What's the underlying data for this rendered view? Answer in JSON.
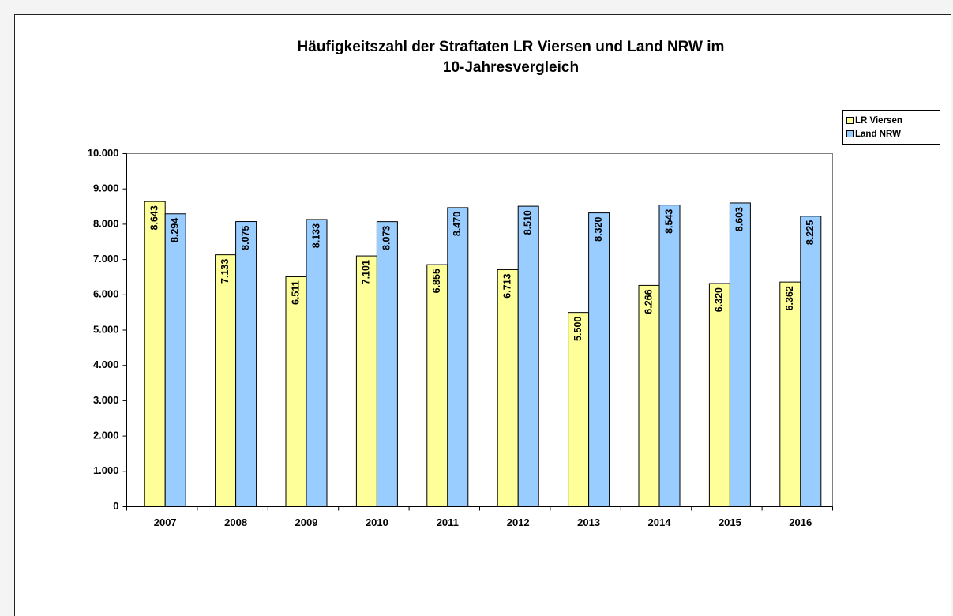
{
  "chart_data": {
    "type": "bar",
    "title": [
      "Häufigkeitszahl der Straftaten LR Viersen und Land NRW im",
      "10-Jahresvergleich"
    ],
    "categories": [
      "2007",
      "2008",
      "2009",
      "2010",
      "2011",
      "2012",
      "2013",
      "2014",
      "2015",
      "2016"
    ],
    "series": [
      {
        "name": "LR Viersen",
        "color": "#ffff99",
        "values": [
          8643,
          7133,
          6511,
          7101,
          6855,
          6713,
          5500,
          6266,
          6320,
          6362
        ],
        "value_labels": [
          "8.643",
          "7.133",
          "6.511",
          "7.101",
          "6.855",
          "6.713",
          "5.500",
          "6.266",
          "6.320",
          "6.362"
        ]
      },
      {
        "name": "Land NRW",
        "color": "#99ccff",
        "values": [
          8294,
          8075,
          8133,
          8073,
          8470,
          8510,
          8320,
          8543,
          8603,
          8225
        ],
        "value_labels": [
          "8.294",
          "8.075",
          "8.133",
          "8.073",
          "8.470",
          "8.510",
          "8.320",
          "8.543",
          "8.603",
          "8.225"
        ]
      }
    ],
    "ylim": [
      0,
      10000
    ],
    "yticks": [
      0,
      {
        "value": 1000,
        "label": "1.000"
      },
      {
        "value": 2000,
        "label": "2.000"
      },
      {
        "value": 3000,
        "label": "3.000"
      },
      {
        "value": 4000,
        "label": "4.000"
      },
      {
        "value": 5000,
        "label": "5.000"
      },
      {
        "value": 6000,
        "label": "6.000"
      },
      {
        "value": 7000,
        "label": "7.000"
      },
      {
        "value": 8000,
        "label": "8.000"
      },
      {
        "value": 9000,
        "label": "9.000"
      },
      {
        "value": 10000,
        "label": "10.000"
      }
    ],
    "grid": false,
    "legend": "right"
  }
}
